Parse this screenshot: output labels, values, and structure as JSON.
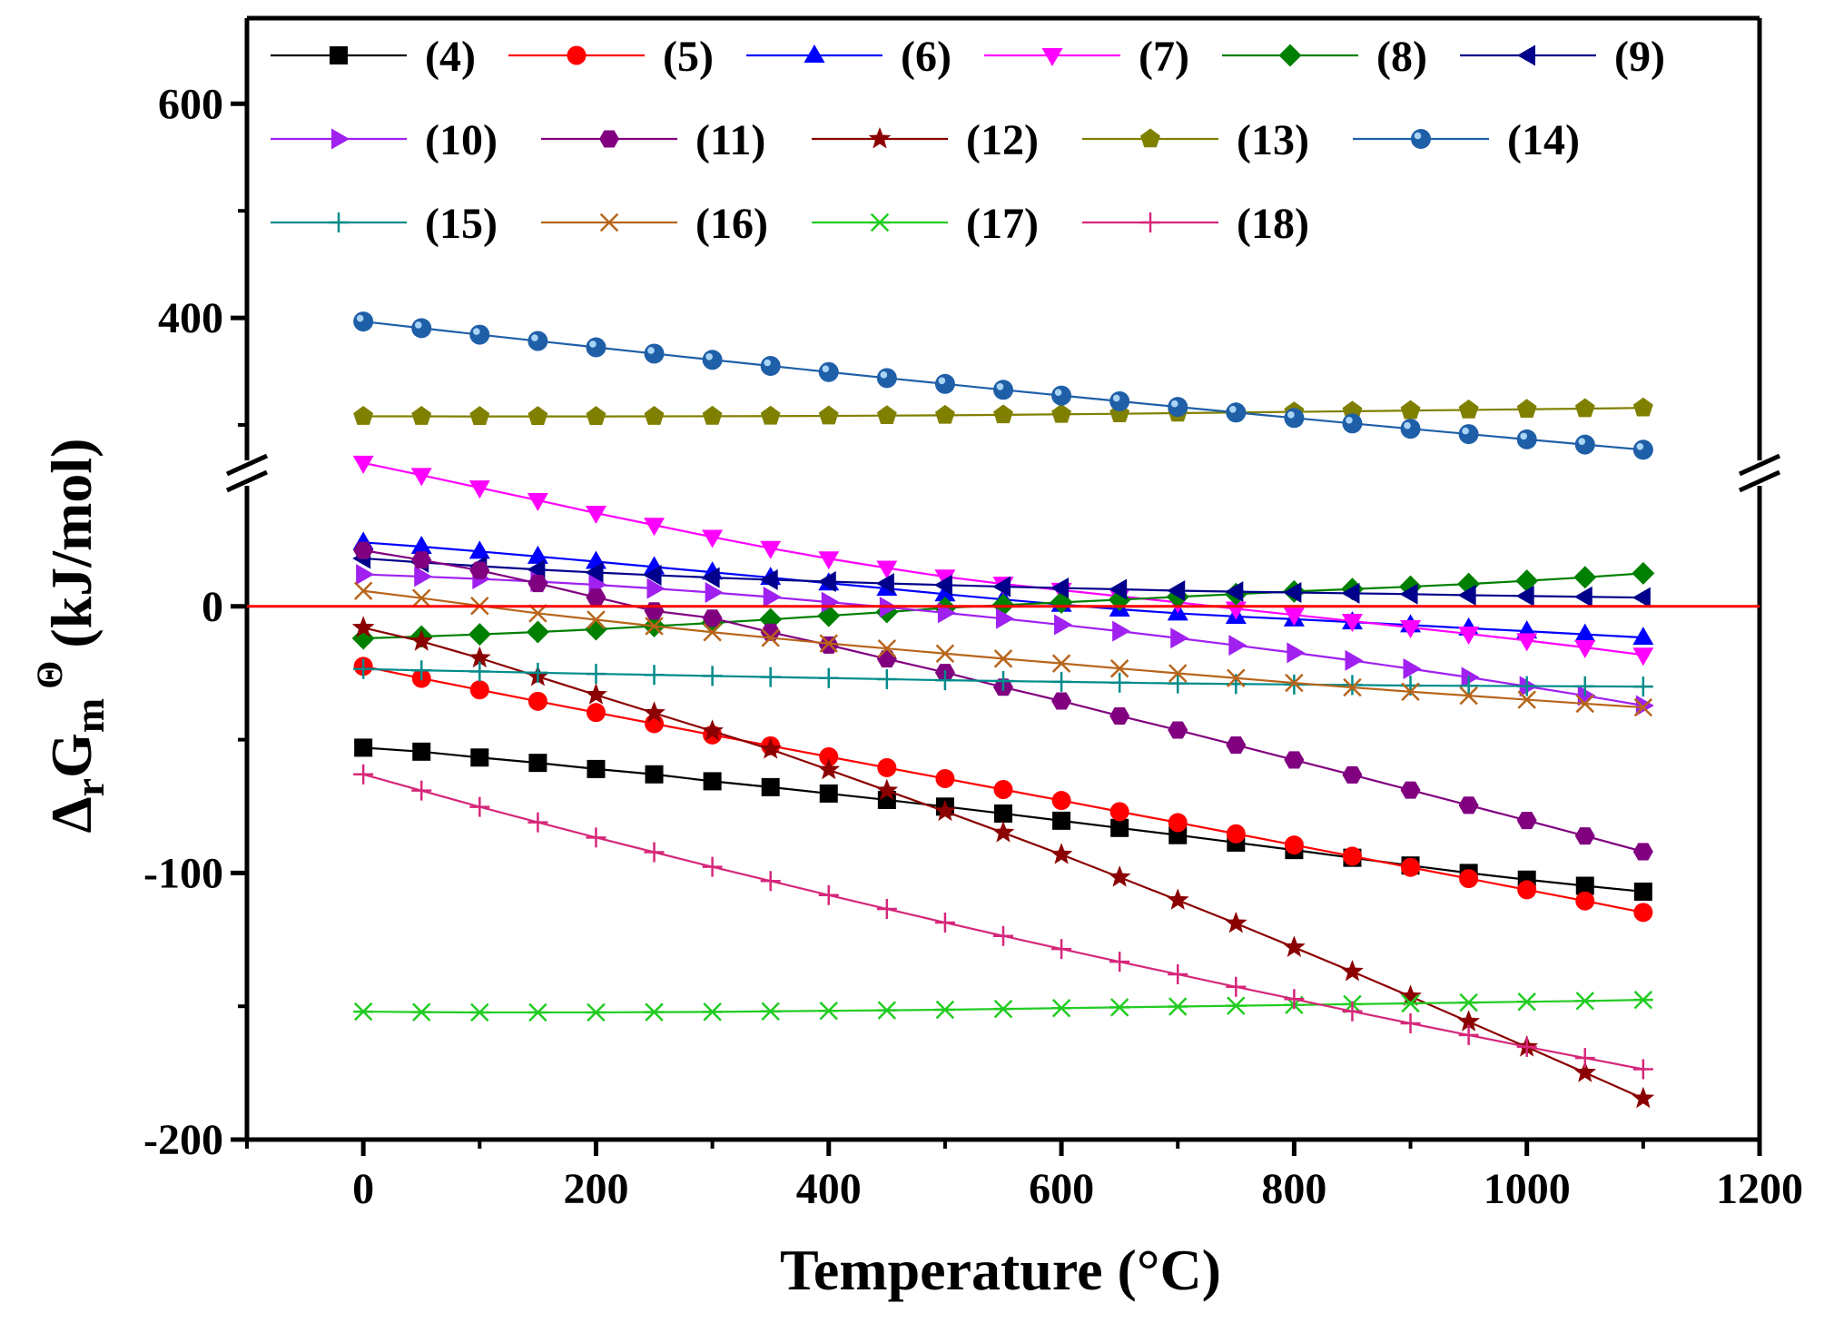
{
  "chart_data": {
    "type": "line",
    "xlabel": "Temperature (°C)",
    "ylabel": {
      "delta": "Δ",
      "sub_r": "r",
      "G": "G",
      "sub_m": "m",
      "sup": "Θ",
      "unit": "(kJ/mol)"
    },
    "x_range": [
      -100,
      1200
    ],
    "x_ticks": [
      "0",
      "200",
      "400",
      "600",
      "800",
      "1000",
      "1200"
    ],
    "y_lower_range": [
      -200,
      50
    ],
    "y_upper_range": [
      255,
      680
    ],
    "y_ticks_lower": [
      "-200",
      "-100",
      "0"
    ],
    "y_ticks_upper": [
      "400",
      "600"
    ],
    "reference_line": {
      "y": 0,
      "color": "#ff0000"
    },
    "x": [
      0,
      50,
      100,
      150,
      200,
      250,
      300,
      350,
      400,
      450,
      500,
      550,
      600,
      650,
      700,
      750,
      800,
      850,
      900,
      950,
      1000,
      1050,
      1100
    ],
    "series": [
      {
        "name": "(4)",
        "color": "#000000",
        "marker": "square",
        "values": [
          -53,
          -54.5,
          -56.7,
          -58.7,
          -61,
          -63,
          -65.6,
          -67.8,
          -70.2,
          -72.6,
          -75.1,
          -77.7,
          -80.4,
          -83.1,
          -85.8,
          -88.6,
          -91.4,
          -94.3,
          -97.2,
          -100,
          -102.5,
          -104.8,
          -107
        ]
      },
      {
        "name": "(5)",
        "color": "#ff0000",
        "marker": "circle",
        "values": [
          -22.5,
          -27,
          -31.3,
          -35.6,
          -39.8,
          -44,
          -48.2,
          -52.3,
          -56.4,
          -60.5,
          -64.6,
          -68.7,
          -72.8,
          -77,
          -81.1,
          -85.3,
          -89.5,
          -93.7,
          -97.9,
          -102.1,
          -106.3,
          -110.5,
          -114.8
        ]
      },
      {
        "name": "(6)",
        "color": "#0000ff",
        "marker": "triangle-up",
        "values": [
          24,
          22.4,
          20.6,
          18.7,
          16.8,
          14.8,
          12.8,
          10.8,
          8.7,
          6.7,
          4.6,
          2.6,
          0.7,
          -1.1,
          -2.6,
          -3.8,
          -4.8,
          -5.9,
          -7,
          -8.2,
          -9.3,
          -10.5,
          -11.7
        ]
      },
      {
        "name": "(7)",
        "color": "#ff00ff",
        "marker": "triangle-down",
        "values": [
          53.8,
          49.2,
          44.5,
          39.8,
          35,
          30.5,
          26,
          21.8,
          17.9,
          14.4,
          11.1,
          8.4,
          6.1,
          3.8,
          1.5,
          -0.9,
          -3.2,
          -5.5,
          -7.9,
          -10.3,
          -12.8,
          -15.4,
          -18.2
        ]
      },
      {
        "name": "(8)",
        "color": "#008000",
        "marker": "diamond",
        "values": [
          -12,
          -11.3,
          -10.5,
          -9.6,
          -8.6,
          -7.4,
          -6.2,
          -4.9,
          -3.5,
          -2.1,
          -0.6,
          0.5,
          1.5,
          2.5,
          3.6,
          4.6,
          5.6,
          6.5,
          7.4,
          8.4,
          9.6,
          10.9,
          12.4
        ]
      },
      {
        "name": "(9)",
        "color": "#00008b",
        "marker": "triangle-left",
        "values": [
          18,
          16.5,
          15.1,
          13.8,
          12.7,
          11.7,
          10.8,
          10,
          9.3,
          8.6,
          8,
          7.4,
          6.9,
          6.4,
          5.9,
          5.5,
          5.2,
          4.9,
          4.6,
          4.2,
          3.9,
          3.6,
          3.3
        ]
      },
      {
        "name": "(10)",
        "color": "#a020f0",
        "marker": "triangle-right",
        "values": [
          12,
          11.2,
          10.3,
          9.3,
          8.1,
          6.7,
          5.2,
          3.5,
          1.6,
          -0.3,
          -2.4,
          -4.6,
          -6.9,
          -9.3,
          -11.9,
          -14.6,
          -17.4,
          -20.3,
          -23.4,
          -26.6,
          -30,
          -33.5,
          -37.2
        ]
      },
      {
        "name": "(11)",
        "color": "#800080",
        "marker": "hexagon",
        "values": [
          21,
          17.4,
          13.5,
          8.6,
          3.4,
          -1.7,
          -4.4,
          -9.7,
          -14.5,
          -19.7,
          -24.8,
          -30.3,
          -35.5,
          -41.1,
          -46.4,
          -52,
          -57.6,
          -63.2,
          -68.9,
          -74.6,
          -80.3,
          -86.1,
          -92
        ]
      },
      {
        "name": "(12)",
        "color": "#8b0000",
        "marker": "star",
        "values": [
          -8,
          -13.1,
          -19.4,
          -26.3,
          -33.2,
          -40,
          -46.8,
          -53.6,
          -61.3,
          -69.1,
          -76.9,
          -84.9,
          -93.1,
          -101.6,
          -110.2,
          -118.9,
          -127.9,
          -137,
          -146.3,
          -155.8,
          -165.3,
          -174.9,
          -184.6
        ]
      },
      {
        "name": "(13)",
        "color": "#808000",
        "marker": "pentagon",
        "values": [
          308,
          308,
          307.9,
          307.9,
          307.9,
          308,
          308.1,
          308.2,
          308.4,
          308.7,
          309,
          309.4,
          309.9,
          310.4,
          311,
          311.6,
          312.2,
          312.8,
          313.4,
          314,
          314.6,
          315.2,
          315.9
        ]
      },
      {
        "name": "(14)",
        "color": "#1f5fa8",
        "marker": "sphere",
        "values": [
          396.6,
          390.4,
          384.3,
          378.4,
          372.5,
          366.6,
          360.8,
          355.1,
          349.4,
          343.8,
          338.3,
          332.8,
          327.4,
          322.1,
          316.8,
          311.6,
          306.5,
          301.4,
          296.4,
          291.4,
          286.5,
          281.6,
          276.8
        ]
      },
      {
        "name": "(15)",
        "color": "#008b8b",
        "marker": "plus",
        "values": [
          -23.5,
          -24,
          -24.4,
          -24.9,
          -25.3,
          -25.7,
          -26.1,
          -26.5,
          -26.9,
          -27.3,
          -27.7,
          -28,
          -28.3,
          -28.6,
          -28.9,
          -29.1,
          -29.3,
          -29.5,
          -29.7,
          -29.8,
          -29.9,
          -30,
          -30.1
        ]
      },
      {
        "name": "(16)",
        "color": "#b8651b",
        "marker": "cross",
        "values": [
          5.8,
          3.1,
          0.2,
          -2.6,
          -5,
          -7.4,
          -9.7,
          -11.8,
          -13.9,
          -15.8,
          -17.7,
          -19.6,
          -21.4,
          -23.3,
          -25.1,
          -26.9,
          -28.7,
          -30.4,
          -32,
          -33.5,
          -35,
          -36.5,
          -37.9
        ]
      },
      {
        "name": "(17)",
        "color": "#22cc22",
        "marker": "asterisk",
        "values": [
          -152,
          -152.2,
          -152.3,
          -152.3,
          -152.3,
          -152.2,
          -152.1,
          -151.9,
          -151.7,
          -151.5,
          -151.3,
          -151,
          -150.7,
          -150.4,
          -150.1,
          -149.8,
          -149.5,
          -149.2,
          -148.9,
          -148.6,
          -148.3,
          -148,
          -147.6
        ]
      },
      {
        "name": "(18)",
        "color": "#d6277a",
        "marker": "plus",
        "values": [
          -63,
          -69.1,
          -75.2,
          -81,
          -86.7,
          -92.2,
          -97.7,
          -103,
          -108.3,
          -113.5,
          -118.6,
          -123.6,
          -128.5,
          -133.3,
          -138,
          -142.7,
          -147.3,
          -151.9,
          -156.4,
          -160.8,
          -165.2,
          -169.4,
          -173.6
        ]
      }
    ]
  }
}
